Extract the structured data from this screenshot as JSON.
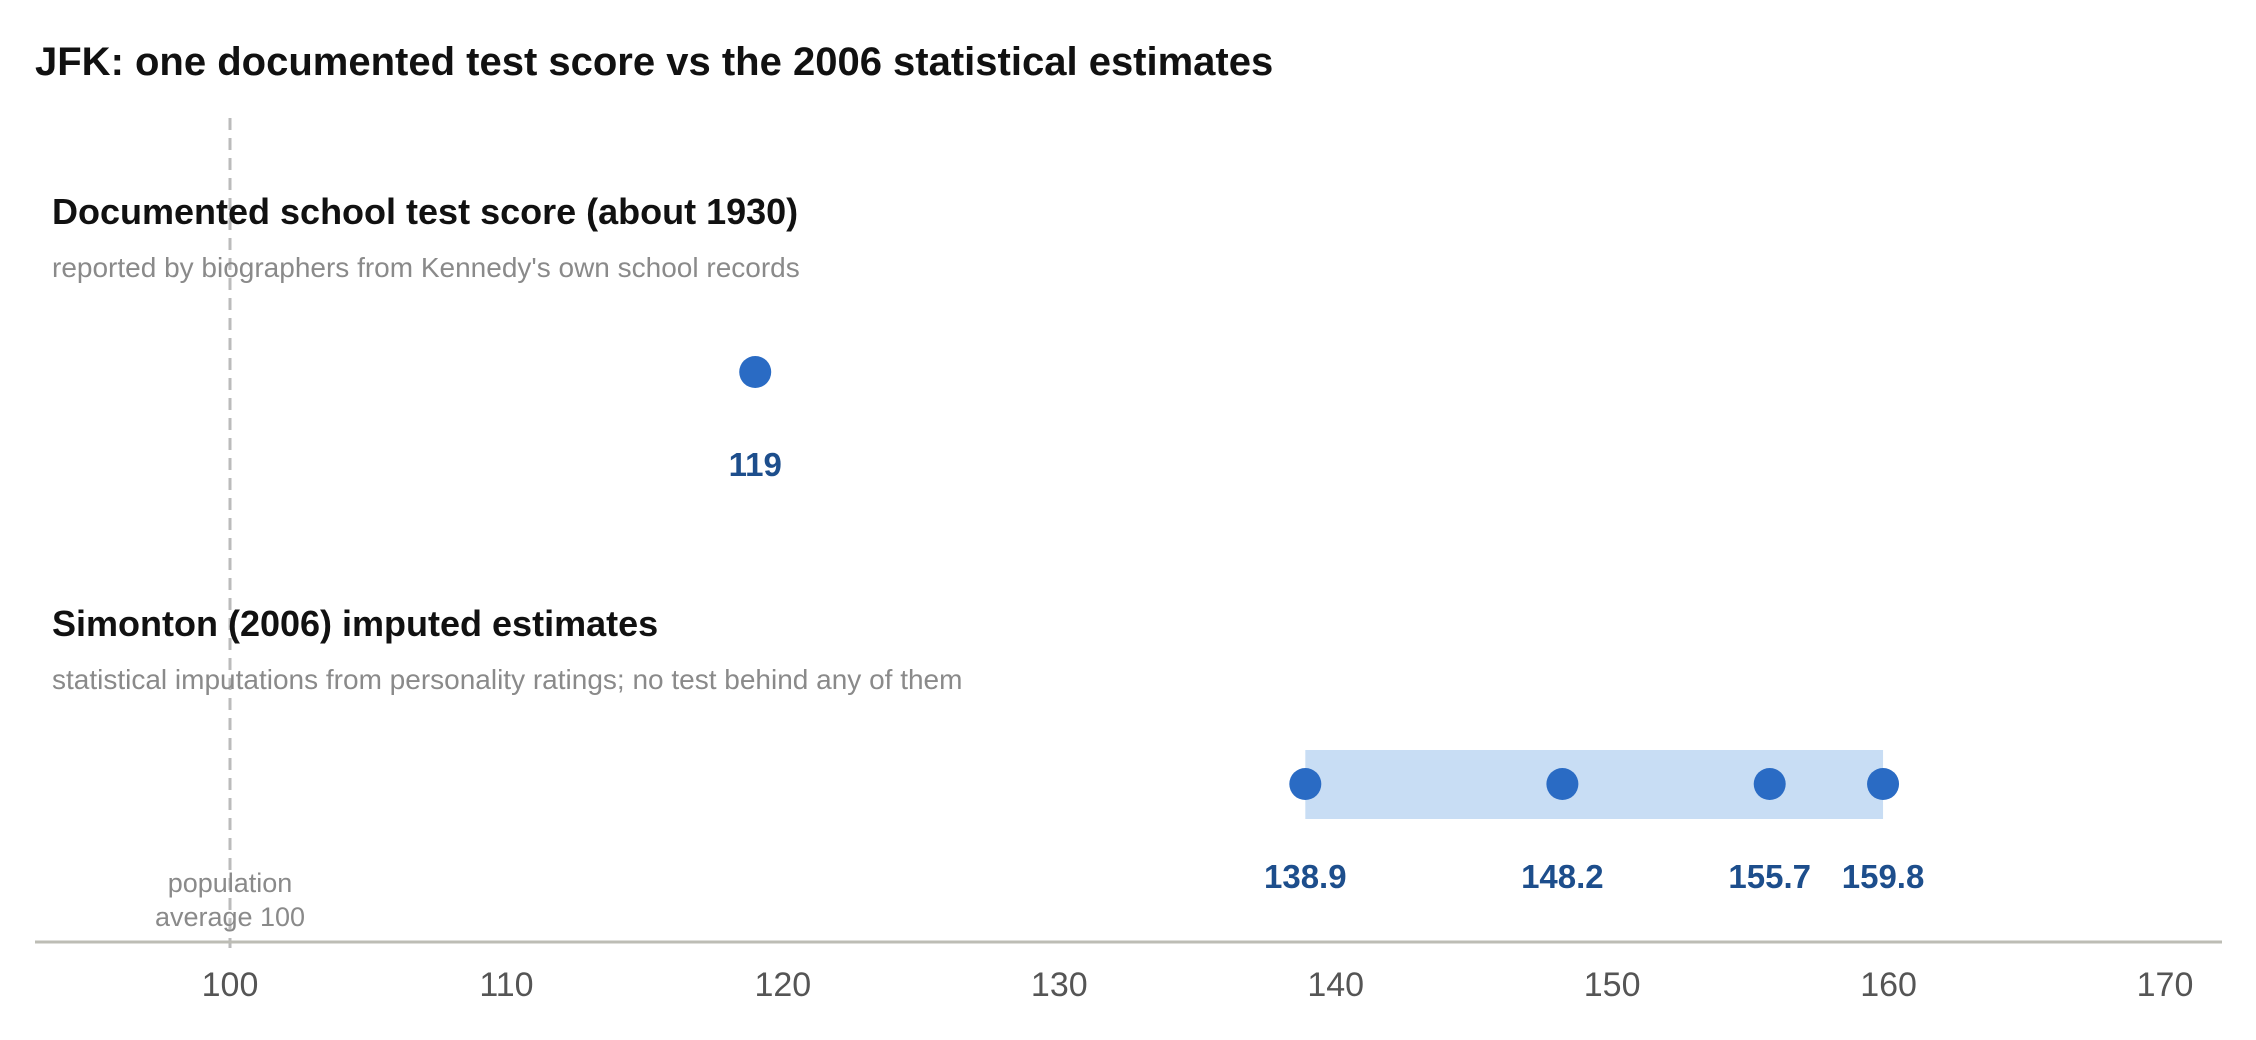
{
  "chart_data": {
    "type": "scatter",
    "title": "JFK: one documented test score vs the 2006 statistical estimates",
    "xlabel": "",
    "ylabel": "",
    "xlim": [
      93,
      172
    ],
    "xticks": [
      100,
      110,
      120,
      130,
      140,
      150,
      160,
      170
    ],
    "grid": false,
    "groups": [
      {
        "title": "Documented school test score (about 1930)",
        "subtitle": "reported by biographers from Kennedy's own school records",
        "values": [
          119
        ],
        "labels": [
          "119"
        ],
        "range_band": null
      },
      {
        "title": "Simonton (2006) imputed estimates",
        "subtitle": "statistical imputations from personality ratings; no test behind any of them",
        "values": [
          138.9,
          148.2,
          155.7,
          159.8
        ],
        "labels": [
          "138.9",
          "148.2",
          "155.7",
          "159.8"
        ],
        "range_band": [
          138.9,
          159.8
        ]
      }
    ],
    "reference_line": {
      "value": 100,
      "label_line1": "population",
      "label_line2": "average 100"
    }
  },
  "colors": {
    "point": "#2a6bc4",
    "value_label": "#1d4e8c",
    "band": "#c8ddf4",
    "axis": "#bdbdb5",
    "reference": "#bbbbbb"
  }
}
